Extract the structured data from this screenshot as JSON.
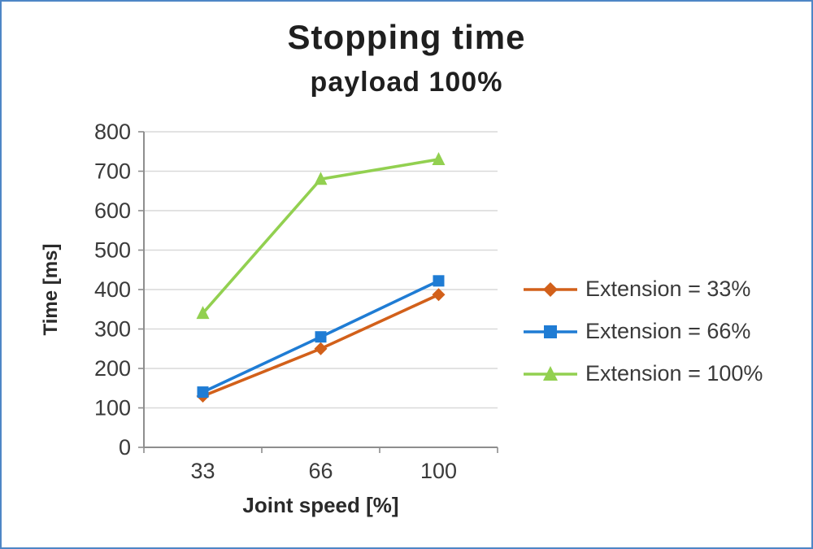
{
  "frame": {
    "border_color": "#4e86c6",
    "background": "#ffffff"
  },
  "chart_data": {
    "type": "line",
    "title": "Stopping time",
    "subtitle": "payload 100%",
    "xlabel": "Joint speed [%]",
    "ylabel": "Time [ms]",
    "categories": [
      "33",
      "66",
      "100"
    ],
    "series": [
      {
        "name": "Extension = 33%",
        "values": [
          130,
          250,
          387
        ],
        "color": "#d2601a",
        "marker": "diamond"
      },
      {
        "name": "Extension = 66%",
        "values": [
          140,
          280,
          422
        ],
        "color": "#1f7cd4",
        "marker": "square"
      },
      {
        "name": "Extension = 100%",
        "values": [
          340,
          680,
          730
        ],
        "color": "#92d050",
        "marker": "triangle"
      }
    ],
    "ylim": [
      0,
      800
    ],
    "ytick_step": 100,
    "grid": true,
    "legend_position": "right"
  }
}
